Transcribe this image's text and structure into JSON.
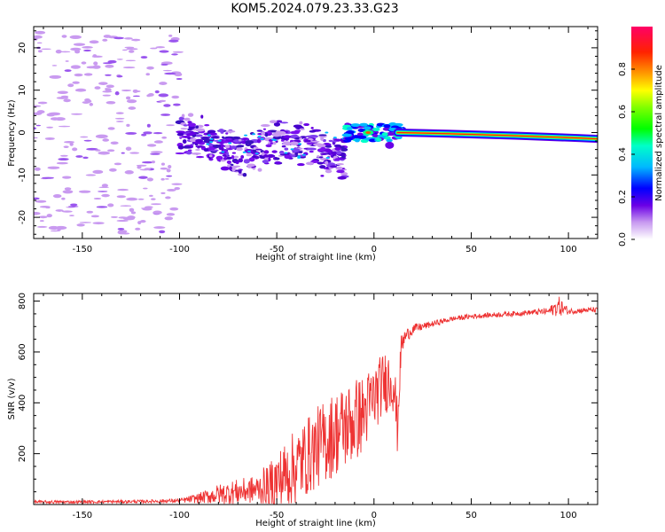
{
  "title": "KOM5.2024.079.23.33.G23",
  "colors": {
    "line": "#ee3333",
    "spectrum_core_low": "#6a00e6",
    "spectrum_noise": "#c99af0"
  },
  "chart_data": [
    {
      "type": "heatmap",
      "xlabel": "Height of straight line (km)",
      "ylabel": "Frequency (Hz)",
      "xlim": [
        -175,
        115
      ],
      "ylim": [
        -25,
        25
      ],
      "x_ticks": [
        -150,
        -100,
        -50,
        0,
        50,
        100
      ],
      "y_ticks": [
        -20,
        -10,
        0,
        10,
        20
      ],
      "grid": false,
      "colorbar": {
        "label": "Normalized spectral amplitude",
        "range": [
          0,
          1
        ],
        "ticks": [
          "0.0",
          "0.2",
          "0.4",
          "0.6",
          "0.8"
        ]
      },
      "segments": [
        {
          "x": [
            -175,
            -100
          ],
          "freq_spread": 24,
          "amplitude": 0.05,
          "note": "scattered weak noise"
        },
        {
          "x": [
            -100,
            -15
          ],
          "freq_center_start": -2,
          "freq_center_end": -5,
          "freq_spread": 6,
          "amplitude": 0.15
        },
        {
          "x": [
            -15,
            15
          ],
          "freq_center": 0,
          "freq_spread": 2,
          "amplitude": 0.55
        },
        {
          "x": [
            15,
            115
          ],
          "freq_center_start": 0,
          "freq_center_end": -1.5,
          "freq_spread": 1,
          "amplitude": 0.95
        }
      ]
    },
    {
      "type": "line",
      "xlabel": "Height of straight line (km)",
      "ylabel": "SNR (v/v)",
      "xlim": [
        -175,
        115
      ],
      "ylim": [
        0,
        830
      ],
      "x_ticks": [
        -150,
        -100,
        -50,
        0,
        50,
        100
      ],
      "y_ticks": [
        200,
        400,
        600,
        800
      ],
      "grid": false,
      "series": [
        {
          "x": [
            -175,
            -150,
            -120,
            -100,
            -90,
            -80,
            -70,
            -60,
            -50,
            -40,
            -30,
            -20,
            -10,
            -5,
            0,
            5,
            10,
            12,
            14,
            16,
            20,
            25,
            30,
            40,
            50,
            60,
            70,
            80,
            90,
            95,
            100,
            110,
            115
          ],
          "y": [
            10,
            10,
            12,
            15,
            25,
            40,
            50,
            60,
            90,
            150,
            220,
            280,
            330,
            360,
            420,
            480,
            500,
            300,
            620,
            660,
            690,
            700,
            710,
            730,
            740,
            745,
            750,
            755,
            760,
            780,
            760,
            765,
            765
          ],
          "noise": [
            6,
            6,
            6,
            8,
            20,
            40,
            50,
            55,
            120,
            150,
            160,
            170,
            170,
            150,
            140,
            120,
            140,
            100,
            50,
            30,
            20,
            15,
            12,
            10,
            10,
            10,
            10,
            10,
            15,
            40,
            12,
            10,
            10
          ]
        }
      ]
    }
  ]
}
